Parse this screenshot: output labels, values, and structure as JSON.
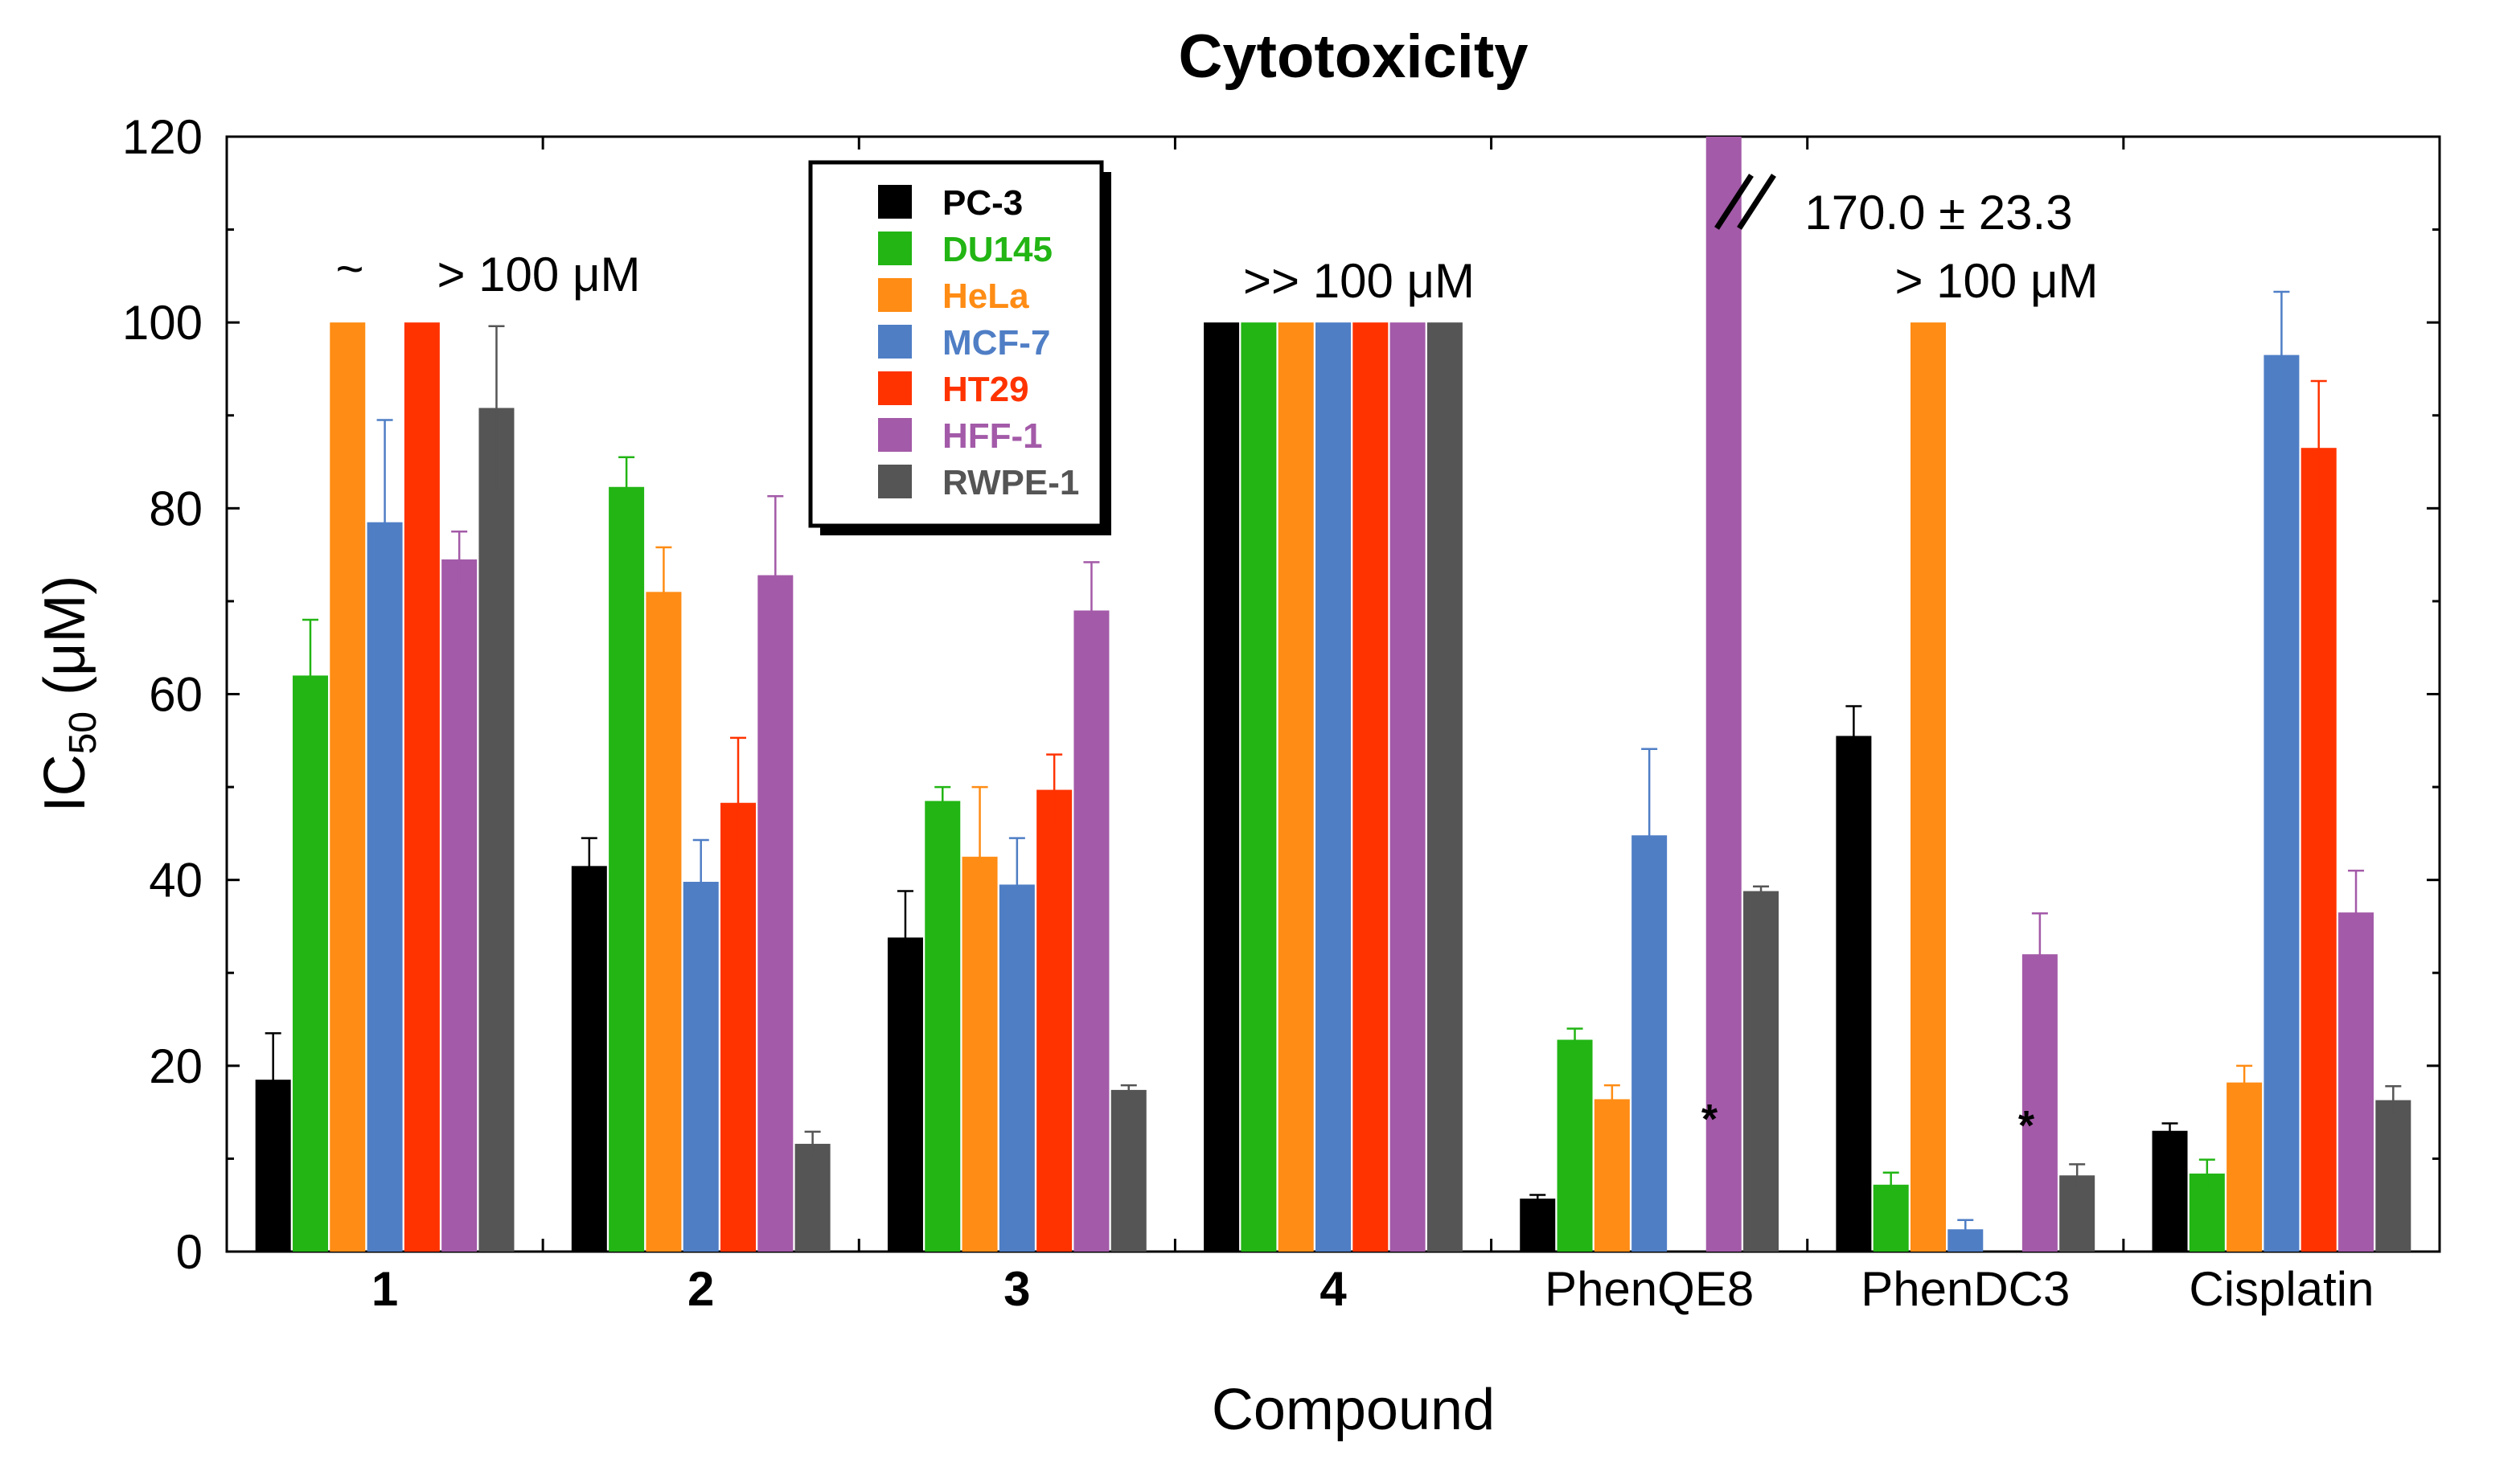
{
  "chart_data": {
    "type": "bar",
    "title": "Cytotoxicity",
    "xlabel": "Compound",
    "ylabel_main": "IC",
    "ylabel_sub": "50",
    "ylabel_unit": " (μM)",
    "ylim": [
      0,
      120
    ],
    "yticks": [
      "0",
      "20",
      "40",
      "60",
      "80",
      "100",
      "120"
    ],
    "grid": false,
    "legend_position": "top-center",
    "categories": [
      "1",
      "2",
      "3",
      "4",
      "PhenQE8",
      "PhenDC3",
      "Cisplatin"
    ],
    "bold_categories": [
      true,
      true,
      true,
      true,
      false,
      false,
      false
    ],
    "series": [
      {
        "name": "PC-3",
        "color": "#000000",
        "values": [
          18.5,
          41.5,
          33.8,
          100,
          5.7,
          55.5,
          13.0
        ],
        "errors": [
          5.0,
          3.0,
          5.0,
          0,
          0.4,
          3.2,
          0.8
        ]
      },
      {
        "name": "DU145",
        "color": "#22b514",
        "values": [
          62.0,
          82.3,
          48.5,
          100,
          22.8,
          7.2,
          8.4
        ],
        "errors": [
          6.0,
          3.2,
          1.5,
          0,
          1.2,
          1.3,
          1.5
        ]
      },
      {
        "name": "HeLa",
        "color": "#ff8c14",
        "values": [
          100,
          71.0,
          42.5,
          100,
          16.4,
          100,
          18.2
        ],
        "errors": [
          0,
          4.8,
          7.5,
          0,
          1.5,
          0,
          1.8
        ]
      },
      {
        "name": "MCF-7",
        "color": "#4f7ec5",
        "values": [
          78.5,
          39.8,
          39.5,
          100,
          44.8,
          2.4,
          96.5
        ],
        "errors": [
          11.0,
          4.5,
          5.0,
          0,
          9.3,
          1.0,
          6.8
        ]
      },
      {
        "name": "HT29",
        "color": "#ff3300",
        "values": [
          100,
          48.3,
          49.7,
          100,
          null,
          null,
          86.5
        ],
        "errors": [
          0,
          7.0,
          3.8,
          0,
          0,
          0,
          7.2
        ]
      },
      {
        "name": "HFF-1",
        "color": "#a35aa8",
        "values": [
          74.5,
          72.8,
          69.0,
          100,
          120,
          32.0,
          36.5
        ],
        "errors": [
          3.0,
          8.5,
          5.2,
          0,
          0,
          4.4,
          4.5
        ]
      },
      {
        "name": "RWPE-1",
        "color": "#555555",
        "values": [
          90.8,
          11.6,
          17.4,
          100,
          38.8,
          8.2,
          16.3
        ],
        "errors": [
          8.8,
          1.3,
          0.5,
          0,
          0.5,
          1.2,
          1.5
        ]
      }
    ],
    "annotations": [
      {
        "text": "~",
        "category": 0
      },
      {
        "text": "> 100 μM",
        "category": 0
      },
      {
        "text": ">> 100 μM",
        "category": 3
      },
      {
        "text": "170.0 ± 23.3",
        "category": 4
      },
      {
        "text": "> 100 μM",
        "category": 5
      }
    ],
    "markers": [
      {
        "text": "*",
        "category": 4,
        "series": "HT29"
      },
      {
        "text": "*",
        "category": 5,
        "series": "HT29"
      }
    ]
  }
}
